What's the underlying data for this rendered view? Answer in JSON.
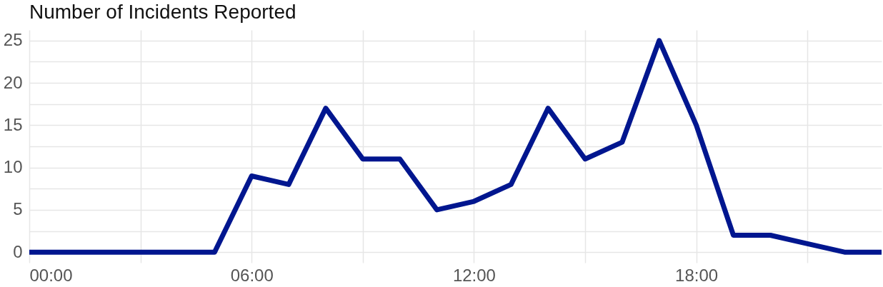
{
  "chart_data": {
    "type": "line",
    "title": "Number of Incidents Reported",
    "x": [
      0,
      1,
      2,
      3,
      4,
      5,
      6,
      7,
      8,
      9,
      10,
      11,
      12,
      13,
      14,
      15,
      16,
      17,
      18,
      19,
      20,
      21,
      22,
      23
    ],
    "series": [
      {
        "color": "#00168f",
        "values": [
          0,
          0,
          0,
          0,
          0,
          0,
          9,
          8,
          17,
          11,
          11,
          5,
          6,
          8,
          17,
          11,
          13,
          25,
          15,
          2,
          2,
          1,
          0,
          0
        ]
      }
    ],
    "xlim": [
      0,
      23
    ],
    "ylim": [
      -1.25,
      26.25
    ],
    "xticks": [
      {
        "value": 0,
        "label": "00:00"
      },
      {
        "value": 3,
        "label": null
      },
      {
        "value": 6,
        "label": "06:00"
      },
      {
        "value": 9,
        "label": null
      },
      {
        "value": 12,
        "label": "12:00"
      },
      {
        "value": 15,
        "label": null
      },
      {
        "value": 18,
        "label": "18:00"
      },
      {
        "value": 21,
        "label": null
      }
    ],
    "yticks": [
      0,
      {
        "value": 2.5,
        "label": null
      },
      5,
      {
        "value": 7.5,
        "label": null
      },
      10,
      {
        "value": 12.5,
        "label": null
      },
      15,
      {
        "value": 17.5,
        "label": null
      },
      20,
      {
        "value": 22.5,
        "label": null
      },
      25
    ],
    "grid": true,
    "marker": "none"
  }
}
